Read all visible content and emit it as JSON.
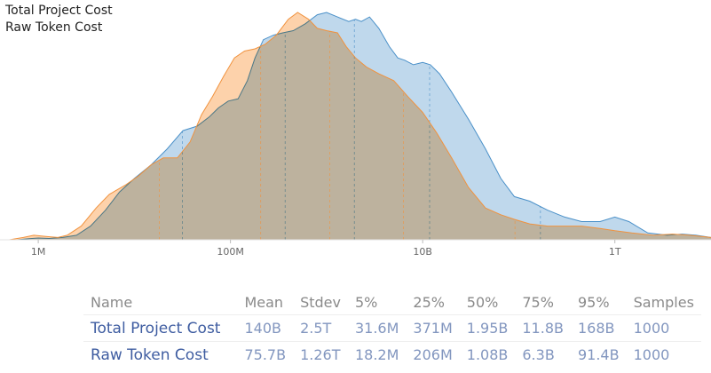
{
  "chart_data": {
    "type": "area",
    "xscale": "log",
    "x_ticks": [
      {
        "value": 1000000,
        "label": "1M"
      },
      {
        "value": 100000000,
        "label": "100M"
      },
      {
        "value": 10000000000,
        "label": "10B"
      },
      {
        "value": 1000000000000,
        "label": "1T"
      }
    ],
    "xlim": [
      400000,
      10000000000000
    ],
    "grid": false,
    "legend_position": "top-left",
    "series": [
      {
        "name": "Total Project Cost",
        "color": "#4a90c8",
        "fill": "#a9cbe6",
        "percentile_markers": [
          31600000,
          371000000,
          1950000000,
          11800000000,
          168000000000
        ],
        "density": [
          [
            600000,
            0
          ],
          [
            800000,
            0.005
          ],
          [
            1000000,
            0.008
          ],
          [
            1300000,
            0.006
          ],
          [
            1800000,
            0.01
          ],
          [
            2500000,
            0.02
          ],
          [
            3500000,
            0.06
          ],
          [
            5000000,
            0.13
          ],
          [
            7000000,
            0.21
          ],
          [
            10000000,
            0.27
          ],
          [
            15000000,
            0.33
          ],
          [
            22000000,
            0.4
          ],
          [
            32000000,
            0.48
          ],
          [
            45000000,
            0.5
          ],
          [
            60000000,
            0.54
          ],
          [
            75000000,
            0.58
          ],
          [
            95000000,
            0.61
          ],
          [
            120000000,
            0.62
          ],
          [
            150000000,
            0.7
          ],
          [
            180000000,
            0.8
          ],
          [
            220000000,
            0.88
          ],
          [
            280000000,
            0.9
          ],
          [
            350000000,
            0.91
          ],
          [
            450000000,
            0.92
          ],
          [
            600000000,
            0.95
          ],
          [
            800000000,
            0.99
          ],
          [
            1000000000,
            1.0
          ],
          [
            1300000000,
            0.98
          ],
          [
            1700000000,
            0.96
          ],
          [
            2000000000,
            0.97
          ],
          [
            2300000000,
            0.96
          ],
          [
            2800000000,
            0.98
          ],
          [
            3500000000,
            0.93
          ],
          [
            4500000000,
            0.85
          ],
          [
            5500000000,
            0.8
          ],
          [
            6500000000,
            0.79
          ],
          [
            8000000000,
            0.77
          ],
          [
            10000000000,
            0.78
          ],
          [
            12000000000,
            0.77
          ],
          [
            15000000000,
            0.73
          ],
          [
            20000000000,
            0.65
          ],
          [
            30000000000,
            0.53
          ],
          [
            45000000000,
            0.4
          ],
          [
            65000000000,
            0.27
          ],
          [
            90000000000,
            0.19
          ],
          [
            130000000000,
            0.17
          ],
          [
            200000000000,
            0.13
          ],
          [
            300000000000,
            0.1
          ],
          [
            450000000000,
            0.08
          ],
          [
            700000000000,
            0.08
          ],
          [
            1000000000000,
            0.1
          ],
          [
            1400000000000,
            0.08
          ],
          [
            2200000000000,
            0.03
          ],
          [
            3500000000000,
            0.02
          ],
          [
            5000000000000,
            0.025
          ],
          [
            7000000000000,
            0.02
          ],
          [
            10000000000000,
            0.01
          ]
        ]
      },
      {
        "name": "Raw Token Cost",
        "color": "#f0923e",
        "fill": "#fcc38f",
        "percentile_markers": [
          18200000,
          206000000,
          1080000000,
          6300000000,
          91400000000
        ],
        "density": [
          [
            500000,
            0
          ],
          [
            700000,
            0.01
          ],
          [
            900000,
            0.02
          ],
          [
            1200000,
            0.015
          ],
          [
            1600000,
            0.01
          ],
          [
            2000000,
            0.02
          ],
          [
            2800000,
            0.06
          ],
          [
            4000000,
            0.14
          ],
          [
            5500000,
            0.2
          ],
          [
            8000000,
            0.24
          ],
          [
            11000000,
            0.28
          ],
          [
            15000000,
            0.33
          ],
          [
            20000000,
            0.36
          ],
          [
            28000000,
            0.36
          ],
          [
            38000000,
            0.43
          ],
          [
            50000000,
            0.55
          ],
          [
            65000000,
            0.63
          ],
          [
            85000000,
            0.72
          ],
          [
            110000000,
            0.8
          ],
          [
            140000000,
            0.83
          ],
          [
            180000000,
            0.84
          ],
          [
            230000000,
            0.86
          ],
          [
            300000000,
            0.9
          ],
          [
            400000000,
            0.97
          ],
          [
            500000000,
            1.0
          ],
          [
            650000000,
            0.97
          ],
          [
            800000000,
            0.93
          ],
          [
            1000000000,
            0.92
          ],
          [
            1300000000,
            0.91
          ],
          [
            1600000000,
            0.85
          ],
          [
            2000000000,
            0.8
          ],
          [
            2600000000,
            0.76
          ],
          [
            3500000000,
            0.73
          ],
          [
            5000000000,
            0.7
          ],
          [
            7000000000,
            0.63
          ],
          [
            10000000000,
            0.56
          ],
          [
            14000000000,
            0.47
          ],
          [
            20000000000,
            0.36
          ],
          [
            30000000000,
            0.23
          ],
          [
            45000000000,
            0.14
          ],
          [
            65000000000,
            0.11
          ],
          [
            90000000000,
            0.09
          ],
          [
            130000000000,
            0.07
          ],
          [
            200000000000,
            0.06
          ],
          [
            300000000000,
            0.06
          ],
          [
            450000000000,
            0.06
          ],
          [
            700000000000,
            0.05
          ],
          [
            1000000000000,
            0.04
          ],
          [
            1500000000000,
            0.03
          ],
          [
            2500000000000,
            0.02
          ],
          [
            4000000000000,
            0.025
          ],
          [
            6000000000000,
            0.02
          ],
          [
            10000000000000,
            0.01
          ]
        ]
      }
    ]
  },
  "table": {
    "headers": [
      "Name",
      "Mean",
      "Stdev",
      "5%",
      "25%",
      "50%",
      "75%",
      "95%",
      "Samples"
    ],
    "rows": [
      {
        "name": "Total Project Cost",
        "values": [
          "140B",
          "2.5T",
          "31.6M",
          "371M",
          "1.95B",
          "11.8B",
          "168B",
          "1000"
        ]
      },
      {
        "name": "Raw Token Cost",
        "values": [
          "75.7B",
          "1.26T",
          "18.2M",
          "206M",
          "1.08B",
          "6.3B",
          "91.4B",
          "1000"
        ]
      }
    ]
  }
}
